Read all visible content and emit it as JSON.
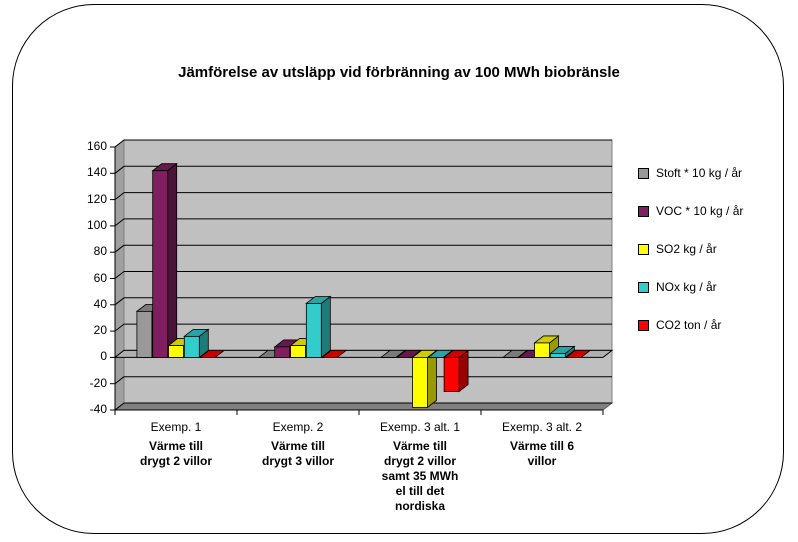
{
  "chart_data": {
    "type": "bar",
    "title": "Jämförelse av utsläpp vid förbränning av 100 MWh biobränsle",
    "categories": [
      {
        "label": "Exemp. 1",
        "desc": "Värme till drygt 2 villor"
      },
      {
        "label": "Exemp. 2",
        "desc": "Värme till drygt 3 villor"
      },
      {
        "label": "Exemp. 3 alt. 1",
        "desc": "Värme till drygt 2 villor samt 35 MWh el till det nordiska"
      },
      {
        "label": "Exemp. 3 alt. 2",
        "desc": "Värme till 6 villor"
      }
    ],
    "series": [
      {
        "name": "Stoft * 10 kg / år",
        "color": "#999999",
        "values": [
          35,
          0,
          0,
          0
        ]
      },
      {
        "name": "VOC * 10 kg / år",
        "color": "#7f1f5f",
        "values": [
          142,
          8,
          0,
          0
        ]
      },
      {
        "name": "SO2 kg / år",
        "color": "#ffff00",
        "values": [
          9,
          9,
          -38,
          11
        ]
      },
      {
        "name": "NOx kg / år",
        "color": "#33cccc",
        "values": [
          16,
          41,
          0,
          3
        ]
      },
      {
        "name": "CO2 ton / år",
        "color": "#ff0000",
        "values": [
          0,
          0,
          -26,
          0
        ]
      }
    ],
    "y_ticks": [
      "160",
      "140",
      "120",
      "100",
      "80",
      "60",
      "40",
      "20",
      "0",
      "-20",
      "-40"
    ],
    "ylim": [
      -40,
      160
    ],
    "grid": true,
    "legend_position": "right"
  }
}
